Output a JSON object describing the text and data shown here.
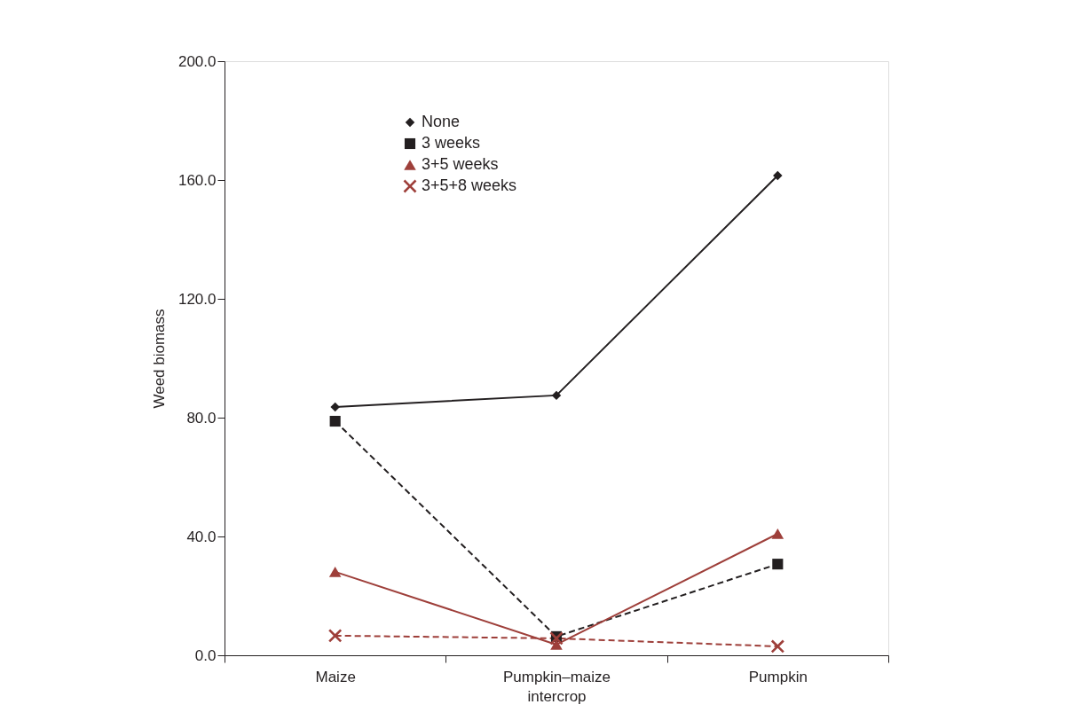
{
  "chart_data": {
    "type": "line",
    "ylabel": "Weed biomass",
    "categories": [
      "Maize",
      "Pumpkin–maize intercrop",
      "Pumpkin"
    ],
    "series": [
      {
        "name": "None",
        "color": "#231f20",
        "values": [
          83.6,
          87.5,
          161.5
        ],
        "marker": "diamond",
        "line_style": "solid"
      },
      {
        "name": "3 weeks",
        "color": "#231f20",
        "values": [
          78.8,
          6.3,
          30.7
        ],
        "marker": "square",
        "line_style": "dashed"
      },
      {
        "name": "3+5  weeks",
        "color": "#9e3f3a",
        "values": [
          28.1,
          3.6,
          40.9
        ],
        "marker": "triangle",
        "line_style": "solid"
      },
      {
        "name": "3+5+8 weeks",
        "color": "#9e3f3a",
        "values": [
          6.6,
          5.7,
          3.0
        ],
        "marker": "cross",
        "line_style": "dashed"
      }
    ],
    "ylim": [
      0,
      200
    ],
    "yticks": [
      {
        "value": 0,
        "label": "0.0"
      },
      {
        "value": 40,
        "label": "40.0"
      },
      {
        "value": 80,
        "label": "80.0"
      },
      {
        "value": 120,
        "label": "120.0"
      },
      {
        "value": 160,
        "label": "160.0"
      },
      {
        "value": 200,
        "label": "200.0"
      }
    ],
    "grid": false,
    "legend": "top left"
  }
}
